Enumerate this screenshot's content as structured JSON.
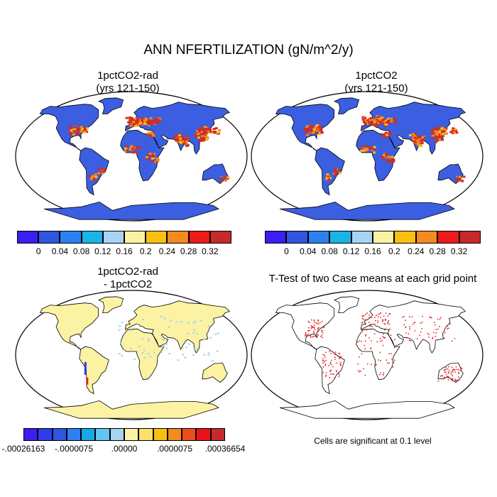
{
  "title": "ANN NFERTILIZATION (gN/m^2/y)",
  "note": "Cells are significant at 0.1 level",
  "colors": {
    "ocean": "#ffffff",
    "land_low": "#3b5fe0",
    "hot": "#d62b1f",
    "warm": "#f58a1f",
    "diff_land": "#fbf3a3",
    "sig_dot": "#e41a1c",
    "outline": "#000000"
  },
  "chart_data": [
    {
      "type": "heatmap",
      "subtitle_line1": "1pctCO2-rad",
      "subtitle_line2": "(yrs 121-150)",
      "colorbar": {
        "colors": [
          "#3b1ef0",
          "#2f56e0",
          "#2c80f0",
          "#18b4ea",
          "#a6d4f2",
          "#fbf3a3",
          "#f9c010",
          "#f58a1f",
          "#ef1a1a",
          "#c72a2a"
        ],
        "labels": [
          "0",
          "0.04",
          "0.08",
          "0.12",
          "0.16",
          "0.2",
          "0.24",
          "0.28",
          "0.32"
        ]
      }
    },
    {
      "type": "heatmap",
      "subtitle_line1": "1pctCO2",
      "subtitle_line2": "(yrs 121-150)",
      "colorbar": {
        "colors": [
          "#3b1ef0",
          "#2f56e0",
          "#2c80f0",
          "#18b4ea",
          "#a6d4f2",
          "#fbf3a3",
          "#f9c010",
          "#f58a1f",
          "#ef1a1a",
          "#c72a2a"
        ],
        "labels": [
          "0",
          "0.04",
          "0.08",
          "0.12",
          "0.16",
          "0.2",
          "0.24",
          "0.28",
          "0.32"
        ]
      }
    },
    {
      "type": "heatmap",
      "subtitle_line1": "1pctCO2-rad",
      "subtitle_line2": "- 1pctCO2",
      "colorbar": {
        "colors": [
          "#3b1ef0",
          "#2f3de8",
          "#2f56e0",
          "#2c80f0",
          "#18a8ea",
          "#64c4f0",
          "#a6d4f2",
          "#fbf3a3",
          "#fbe06a",
          "#f9c010",
          "#f58a1f",
          "#ef4b1a",
          "#e8131a",
          "#c72a2a"
        ],
        "labels": [
          "-.00026163",
          "-.0000075",
          ".00000",
          ".0000075",
          ".00036654"
        ]
      }
    },
    {
      "type": "heatmap",
      "subtitle_line1": "T-Test of two Case means at each grid point",
      "subtitle_line2": ""
    }
  ]
}
